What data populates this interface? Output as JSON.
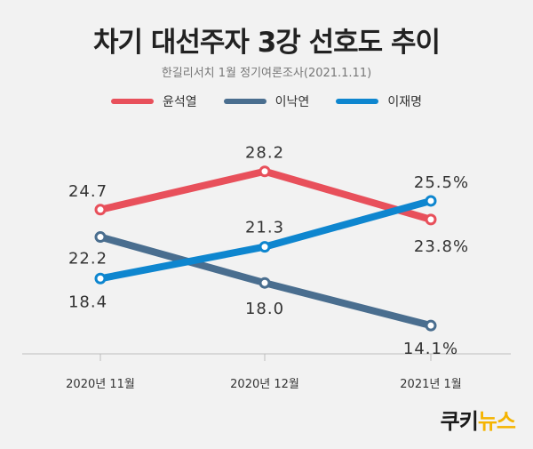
{
  "chart_data": {
    "type": "line",
    "title": "차기 대선주자 3강 선호도 추이",
    "subtitle": "한길리서치 1월 정기여론조사(2021.1.11)",
    "categories": [
      "2020년 11월",
      "2020년 12월",
      "2021년 1월"
    ],
    "series": [
      {
        "name": "윤석열",
        "color": "#e8505b",
        "values": [
          24.7,
          28.2,
          23.8
        ],
        "labels": [
          "24.7",
          "28.2",
          "23.8%"
        ]
      },
      {
        "name": "이낙연",
        "color": "#4a6e8f",
        "values": [
          22.2,
          18.0,
          14.1
        ],
        "labels": [
          "22.2",
          "18.0",
          "14.1%"
        ]
      },
      {
        "name": "이재명",
        "color": "#0e86cf",
        "values": [
          18.4,
          21.3,
          25.5
        ],
        "labels": [
          "18.4",
          "21.3",
          "25.5%"
        ]
      }
    ],
    "ylim": [
      12,
      30
    ],
    "legend": "top-center",
    "grid": false
  },
  "brand": {
    "part1": "쿠키",
    "part2": "뉴스"
  }
}
